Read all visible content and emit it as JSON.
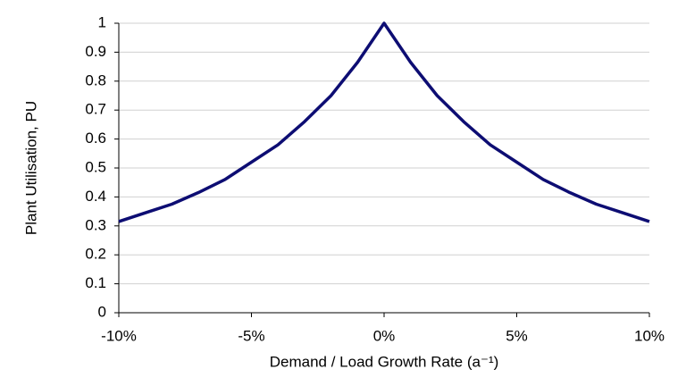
{
  "chart_data": {
    "type": "line",
    "x_label": "Demand / Load Growth Rate (a⁻¹)",
    "y_label": "Plant Utilisation, PU",
    "x": [
      -10,
      -9,
      -8,
      -7,
      -6,
      -5,
      -4,
      -3,
      -2,
      -1,
      0,
      1,
      2,
      3,
      4,
      5,
      6,
      7,
      8,
      9,
      10
    ],
    "series": [
      {
        "color": "#0d0d73",
        "values": [
          0.315,
          0.345,
          0.375,
          0.415,
          0.46,
          0.52,
          0.58,
          0.66,
          0.75,
          0.865,
          1.0,
          0.865,
          0.75,
          0.66,
          0.58,
          0.52,
          0.46,
          0.415,
          0.375,
          0.345,
          0.315
        ]
      }
    ],
    "xlim": [
      -10,
      10
    ],
    "xticks": [
      {
        "value": -10,
        "label": "-10%"
      },
      {
        "value": -5,
        "label": "-5%"
      },
      {
        "value": 0,
        "label": "0%"
      },
      {
        "value": 5,
        "label": "5%"
      },
      {
        "value": 10,
        "label": "10%"
      }
    ],
    "ylim": [
      0,
      1
    ],
    "yticks": [
      0,
      0.1,
      0.2,
      0.3,
      0.4,
      0.5,
      0.6,
      0.7,
      0.8,
      0.9,
      1
    ],
    "grid": true
  }
}
